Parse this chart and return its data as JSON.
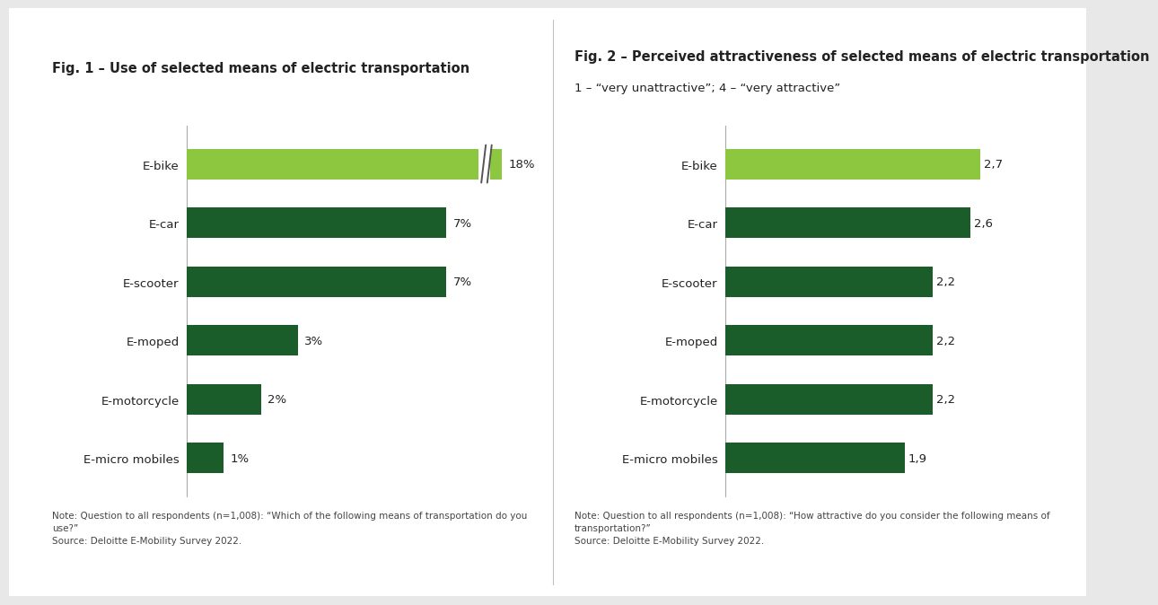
{
  "fig1_title": "Fig. 1 – Use of selected means of electric transportation",
  "fig2_title": "Fig. 2 – Perceived attractiveness of selected means of electric transportation",
  "fig2_subtitle": "1 – “very unattractive”; 4 – “very attractive”",
  "categories": [
    "E-bike",
    "E-car",
    "E-scooter",
    "E-moped",
    "E-motorcycle",
    "E-micro mobiles"
  ],
  "fig1_values": [
    18,
    7,
    7,
    3,
    2,
    1
  ],
  "fig1_labels": [
    "18%",
    "7%",
    "7%",
    "3%",
    "2%",
    "1%"
  ],
  "fig2_values": [
    2.7,
    2.6,
    2.2,
    2.2,
    2.2,
    1.9
  ],
  "fig2_labels": [
    "2,7",
    "2,6",
    "2,2",
    "2,2",
    "2,2",
    "1,9"
  ],
  "bar_color_highlight": "#8DC63F",
  "bar_color_dark": "#1A5C2A",
  "fig1_note": "Note: Question to all respondents (n=1,008): “Which of the following means of transportation do you\nuse?”\nSource: Deloitte E-Mobility Survey 2022.",
  "fig2_note": "Note: Question to all respondents (n=1,008): “How attractive do you consider the following means of\ntransportation?”\nSource: Deloitte E-Mobility Survey 2022.",
  "background_color": "#e8e8e8",
  "inner_background": "#ffffff",
  "axis_line_color": "#aaaaaa",
  "title_fontsize": 10.5,
  "subtitle_fontsize": 9.5,
  "label_fontsize": 9.5,
  "note_fontsize": 7.5,
  "bar_height": 0.52
}
